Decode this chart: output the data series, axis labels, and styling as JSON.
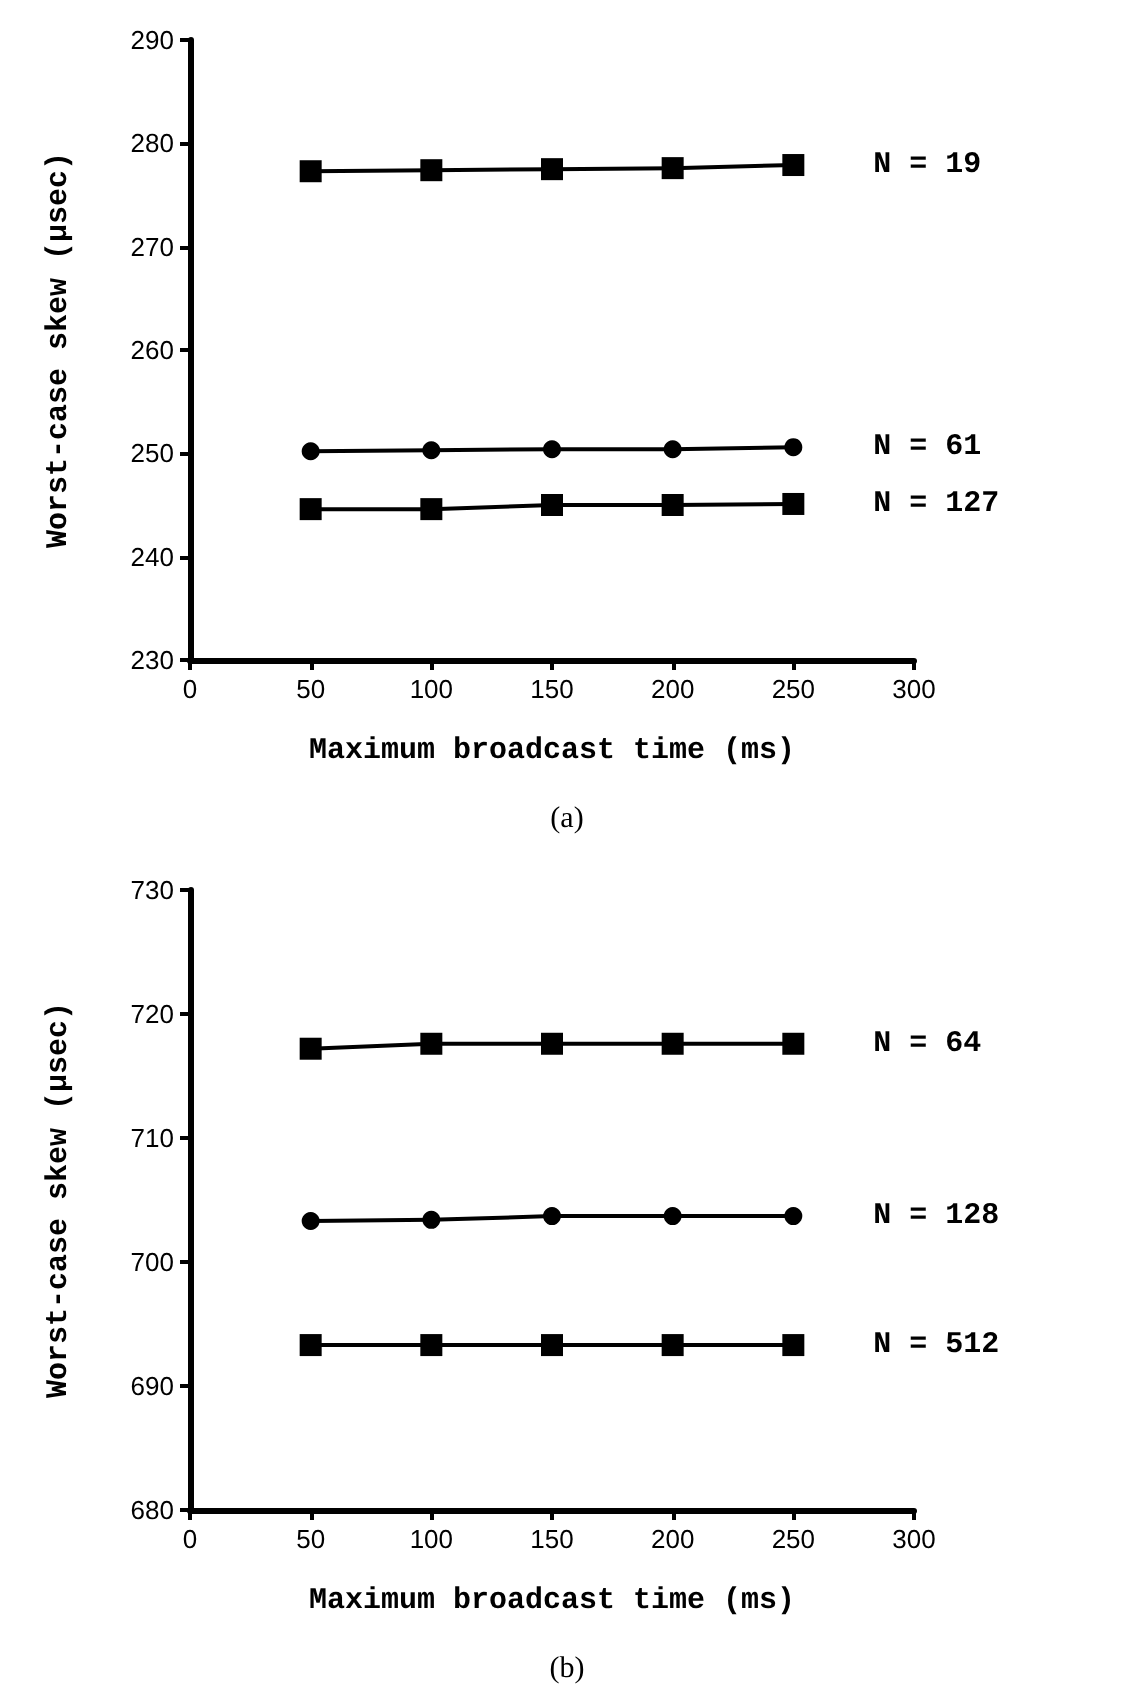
{
  "chart_data": [
    {
      "type": "line",
      "xlabel": "Maximum broadcast time (ms)",
      "ylabel": "Worst-case skew (µsec)",
      "annotations": [
        "(a)"
      ],
      "x": [
        50,
        100,
        150,
        200,
        250
      ],
      "xlim": [
        0,
        300
      ],
      "xticks": [
        0,
        50,
        100,
        150,
        200,
        250,
        300
      ],
      "ylim": [
        230,
        290
      ],
      "yticks": [
        230,
        240,
        250,
        260,
        270,
        280,
        290
      ],
      "grid": false,
      "legend": false,
      "line_style": "solid",
      "series": [
        {
          "name": "N = 19",
          "color": "#000000",
          "marker": "square",
          "values": [
            277.3,
            277.4,
            277.5,
            277.6,
            277.9
          ]
        },
        {
          "name": "N = 61",
          "color": "#000000",
          "marker": "circle",
          "values": [
            250.2,
            250.3,
            250.4,
            250.4,
            250.6
          ]
        },
        {
          "name": "N = 127",
          "color": "#000000",
          "marker": "square",
          "values": [
            244.6,
            244.6,
            245.0,
            245.0,
            245.1
          ]
        }
      ]
    },
    {
      "type": "line",
      "xlabel": "Maximum broadcast time (ms)",
      "ylabel": "Worst-case skew (µsec)",
      "annotations": [
        "(b)"
      ],
      "x": [
        50,
        100,
        150,
        200,
        250
      ],
      "xlim": [
        0,
        300
      ],
      "xticks": [
        0,
        50,
        100,
        150,
        200,
        250,
        300
      ],
      "ylim": [
        680,
        730
      ],
      "yticks": [
        680,
        690,
        700,
        710,
        720,
        730
      ],
      "grid": false,
      "legend": false,
      "line_style": "solid",
      "series": [
        {
          "name": "N = 64",
          "color": "#000000",
          "marker": "square",
          "values": [
            717.2,
            717.6,
            717.6,
            717.6,
            717.6
          ]
        },
        {
          "name": "N = 128",
          "color": "#000000",
          "marker": "circle",
          "values": [
            703.3,
            703.4,
            703.7,
            703.7,
            703.7
          ]
        },
        {
          "name": "N = 512",
          "color": "#000000",
          "marker": "square",
          "values": [
            693.3,
            693.3,
            693.3,
            693.3,
            693.3
          ]
        }
      ]
    }
  ]
}
